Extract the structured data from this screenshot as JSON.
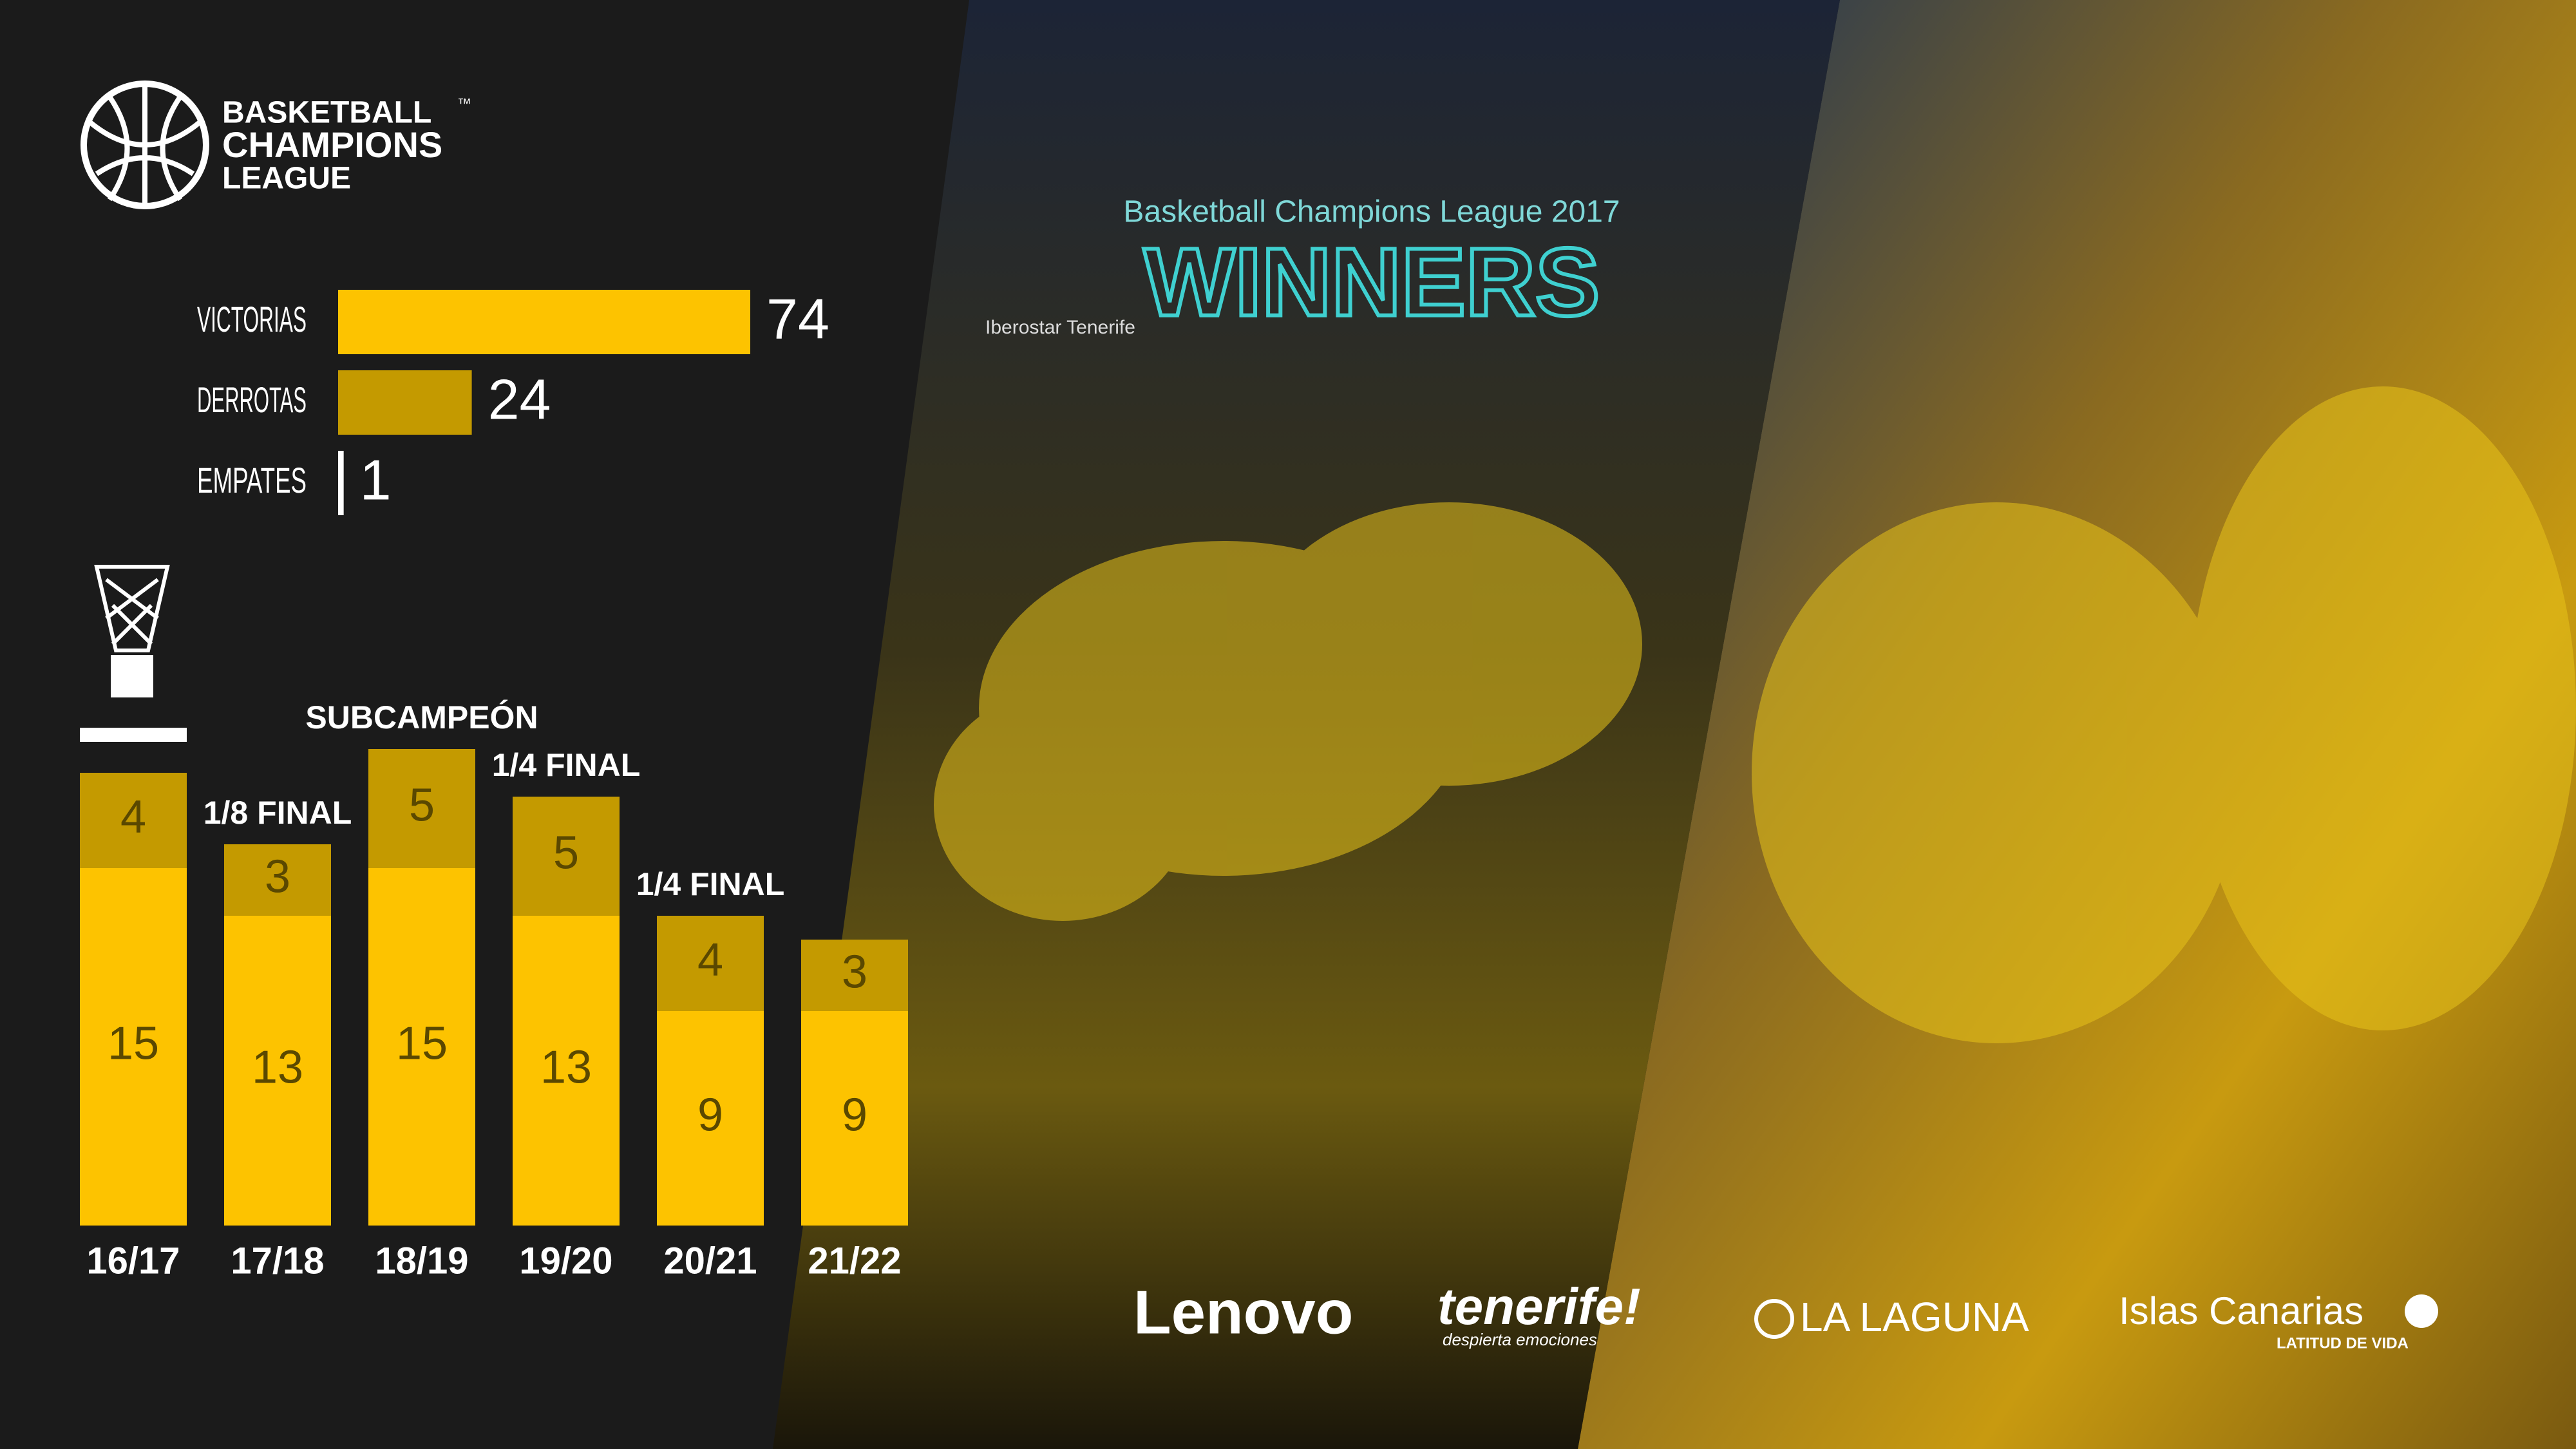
{
  "logo": {
    "line1": "BASKETBALL",
    "tm": "™",
    "line2": "CHAMPIONS",
    "line3": "LEAGUE"
  },
  "chart_data": [
    {
      "type": "bar",
      "orientation": "horizontal",
      "categories": [
        "VICTORIAS",
        "DERROTAS",
        "EMPATES"
      ],
      "values": [
        74,
        24,
        1
      ],
      "colors": [
        "#fdc300",
        "#c49a00",
        "#ffffff"
      ]
    },
    {
      "type": "stacked_bar",
      "categories": [
        "16/17",
        "17/18",
        "18/19",
        "19/20",
        "20/21",
        "21/22"
      ],
      "annotations": [
        null,
        "1/8 FINAL",
        "SUBCAMPEÓN",
        "1/4 FINAL",
        "1/4 FINAL",
        null
      ],
      "series": [
        {
          "color": "#fdc300",
          "values": [
            15,
            13,
            15,
            13,
            9,
            9
          ]
        },
        {
          "color": "#c49a00",
          "values": [
            4,
            3,
            5,
            5,
            4,
            3
          ]
        }
      ]
    }
  ],
  "photo_texts": {
    "banner": "Basketball Champions League 2017",
    "winners": "WINNERS",
    "team": "Iberostar Tenerife"
  },
  "sponsors": {
    "lenovo": "Lenovo",
    "tenerife": "tenerife!",
    "tenerife_tagline": "despierta emociones",
    "laguna": "LA LAGUNA",
    "canarias": "Islas Canarias",
    "canarias_tagline": "LATITUD DE VIDA"
  }
}
